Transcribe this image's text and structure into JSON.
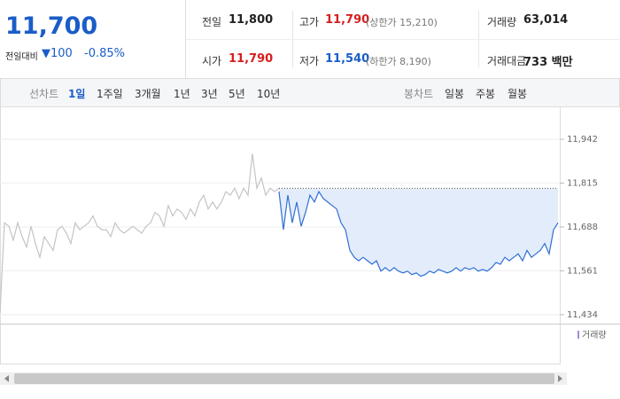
{
  "header": {
    "price": "11,700",
    "change_label": "전일대비",
    "change": "▼100",
    "change_pct": "-0.85%"
  },
  "info": [
    {
      "label": "전일",
      "value": "11,800"
    },
    {
      "label": "고가",
      "value": "11,790",
      "note": "(상한가 15,210)"
    },
    {
      "label": "거래량",
      "value": "63,014"
    },
    {
      "label": "시가",
      "value": "11,790"
    },
    {
      "label": "저가",
      "value": "11,540",
      "note": "(하한가 8,190)"
    },
    {
      "label": "거래대금",
      "value": "733 백만"
    }
  ],
  "tabs": {
    "line_label": "선차트",
    "line_periods": [
      "1일",
      "1주일",
      "3개월",
      "1년",
      "3년",
      "5년",
      "10년"
    ],
    "candle_label": "봉차트",
    "candle_periods": [
      "일봉",
      "주봉",
      "월봉"
    ]
  },
  "chart_data": {
    "type": "line",
    "ylim": [
      11408,
      12032
    ],
    "yticks": [
      {
        "value": 11942,
        "label": "11,942"
      },
      {
        "value": 11815,
        "label": "11,815"
      },
      {
        "value": 11688,
        "label": "11,688"
      },
      {
        "value": 11561,
        "label": "11,561"
      },
      {
        "value": 11434,
        "label": "11,434"
      }
    ],
    "reference": 11800,
    "grid": true,
    "volume_label": "거래량",
    "series": [
      {
        "color": "#c4c4c4",
        "values": [
          11440,
          11700,
          11690,
          11650,
          11700,
          11660,
          11630,
          11690,
          11640,
          11600,
          11660,
          11640,
          11620,
          11680,
          11690,
          11670,
          11640,
          11700,
          11680,
          11690,
          11700,
          11720,
          11690,
          11680,
          11680,
          11660,
          11700,
          11680,
          11670,
          11680,
          11690,
          11680,
          11670,
          11690,
          11700,
          11730,
          11720,
          11690,
          11750,
          11720,
          11740,
          11730,
          11710,
          11740,
          11720,
          11760,
          11780,
          11740,
          11760,
          11740,
          11760,
          11790,
          11780,
          11800,
          11770,
          11800,
          11780,
          11900,
          11800,
          11830,
          11780,
          11800,
          11790,
          11800
        ]
      },
      {
        "color": "#2f6fd6",
        "values": [
          11790,
          11680,
          11780,
          11700,
          11760,
          11690,
          11730,
          11780,
          11760,
          11790,
          11770,
          11760,
          11750,
          11740,
          11700,
          11680,
          11620,
          11600,
          11590,
          11600,
          11590,
          11580,
          11590,
          11560,
          11570,
          11560,
          11570,
          11560,
          11555,
          11560,
          11550,
          11555,
          11545,
          11550,
          11560,
          11555,
          11565,
          11560,
          11555,
          11560,
          11570,
          11560,
          11570,
          11565,
          11570,
          11560,
          11565,
          11560,
          11570,
          11585,
          11580,
          11600,
          11590,
          11600,
          11610,
          11590,
          11620,
          11600,
          11610,
          11620,
          11640,
          11610,
          11680,
          11700
        ]
      }
    ]
  }
}
